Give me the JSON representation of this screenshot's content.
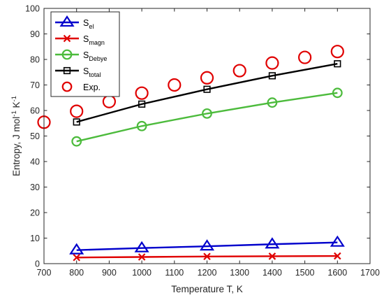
{
  "chart_data": {
    "type": "line",
    "xlabel": "Temperature T, K",
    "ylabel_parts": {
      "prefix": "Entropy, J mol",
      "exp1": "-1",
      "mid": " K",
      "exp2": "-1"
    },
    "xlim": [
      700,
      1700
    ],
    "ylim": [
      0,
      100
    ],
    "xticks": [
      700,
      800,
      900,
      1000,
      1100,
      1200,
      1300,
      1400,
      1500,
      1600,
      1700
    ],
    "yticks": [
      0,
      10,
      20,
      30,
      40,
      50,
      60,
      70,
      80,
      90,
      100
    ],
    "grid": false,
    "legend_position": "top-left",
    "series": [
      {
        "key": "el",
        "label_main": "S",
        "label_sub": "el",
        "color": "#0000cc",
        "marker": "triangle",
        "line": true,
        "x": [
          800,
          1000,
          1200,
          1400,
          1600
        ],
        "y": [
          5.3,
          6.1,
          6.8,
          7.6,
          8.3
        ]
      },
      {
        "key": "magn",
        "label_main": "S",
        "label_sub": "magn",
        "color": "#e00000",
        "marker": "x",
        "line": true,
        "x": [
          800,
          1000,
          1200,
          1400,
          1600
        ],
        "y": [
          2.4,
          2.6,
          2.8,
          2.9,
          3.0
        ]
      },
      {
        "key": "debye",
        "label_main": "S",
        "label_sub": "Debye",
        "color": "#4cbb3c",
        "marker": "circle",
        "line": true,
        "x": [
          800,
          1000,
          1200,
          1400,
          1600
        ],
        "y": [
          47.9,
          53.9,
          58.8,
          63.1,
          66.9
        ]
      },
      {
        "key": "total",
        "label_main": "S",
        "label_sub": "total",
        "color": "#000000",
        "marker": "square",
        "line": true,
        "x": [
          800,
          1000,
          1200,
          1400,
          1600
        ],
        "y": [
          55.5,
          62.5,
          68.3,
          73.6,
          78.3
        ]
      },
      {
        "key": "exp",
        "label_main": "Exp.",
        "label_sub": "",
        "color": "#e00000",
        "marker": "circle",
        "line": false,
        "x": [
          700,
          800,
          900,
          1000,
          1100,
          1200,
          1300,
          1400,
          1500,
          1600
        ],
        "y": [
          55.4,
          59.7,
          63.5,
          66.8,
          70.0,
          72.8,
          75.6,
          78.6,
          80.8,
          83.1
        ]
      }
    ]
  }
}
